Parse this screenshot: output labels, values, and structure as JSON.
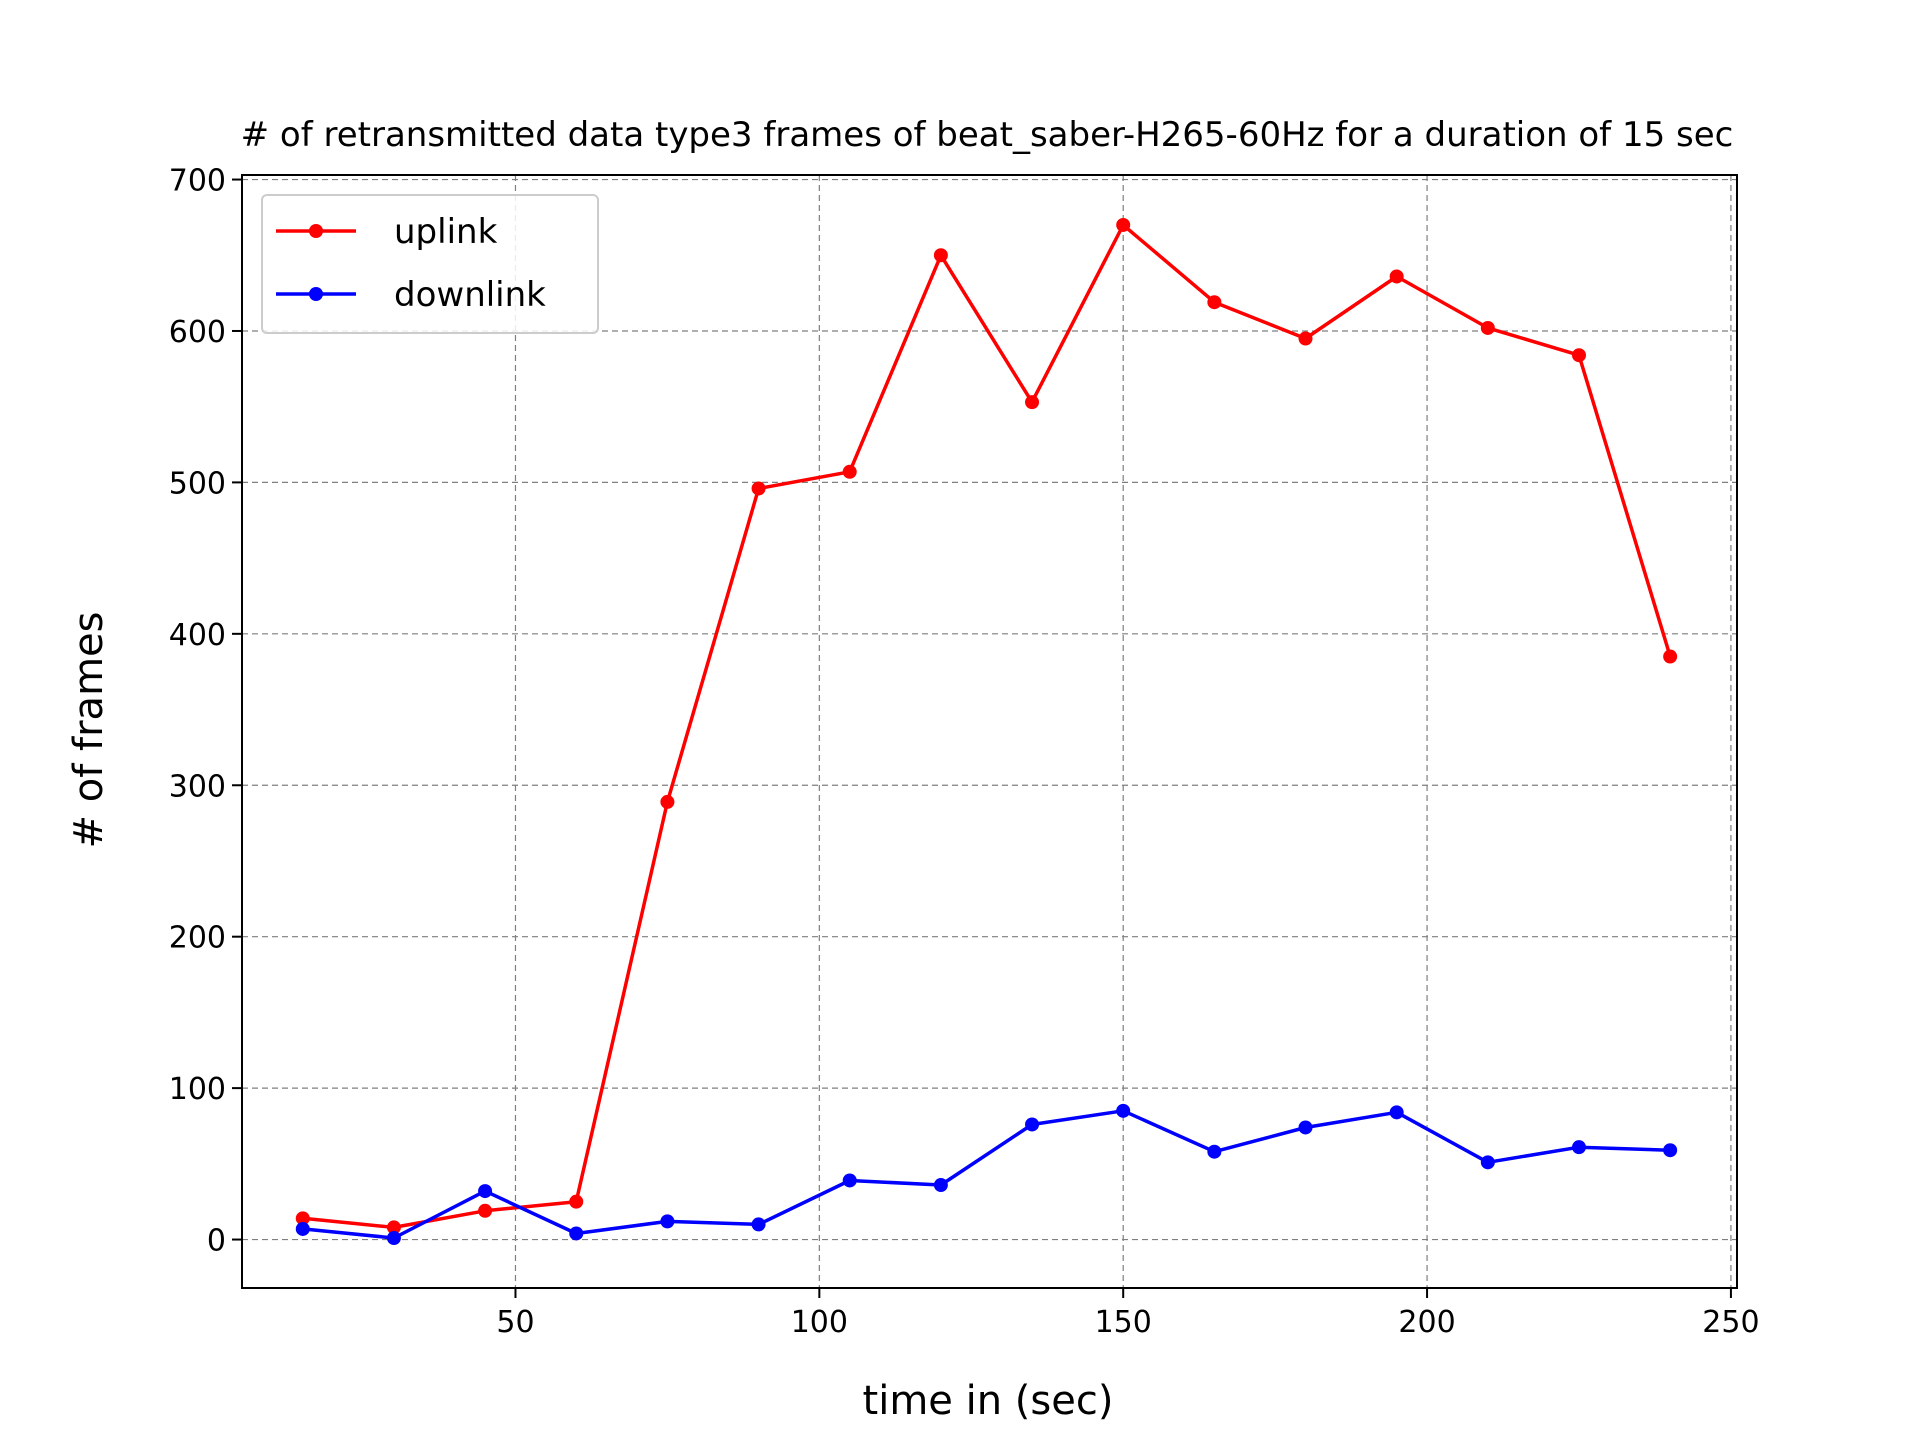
{
  "chart_data": {
    "type": "line",
    "title": "# of retransmitted data type3 frames of beat_saber-H265-60Hz for a duration of 15 sec",
    "xlabel": "time in (sec)",
    "ylabel": "# of frames",
    "xlim": [
      5,
      251
    ],
    "ylim": [
      -32,
      703
    ],
    "xticks": [
      50,
      100,
      150,
      200,
      250
    ],
    "yticks": [
      0,
      100,
      200,
      300,
      400,
      500,
      600,
      700
    ],
    "grid": true,
    "legend_position": "top-left",
    "x": [
      15,
      30,
      45,
      60,
      75,
      90,
      105,
      120,
      135,
      150,
      165,
      180,
      195,
      210,
      225,
      240
    ],
    "series": [
      {
        "name": "uplink",
        "color": "#ff0000",
        "values": [
          14,
          8,
          19,
          25,
          289,
          496,
          507,
          650,
          553,
          670,
          619,
          595,
          636,
          602,
          584,
          385
        ]
      },
      {
        "name": "downlink",
        "color": "#0000ff",
        "values": [
          7,
          1,
          32,
          4,
          12,
          10,
          39,
          36,
          76,
          85,
          58,
          74,
          84,
          51,
          61,
          59
        ]
      }
    ]
  }
}
